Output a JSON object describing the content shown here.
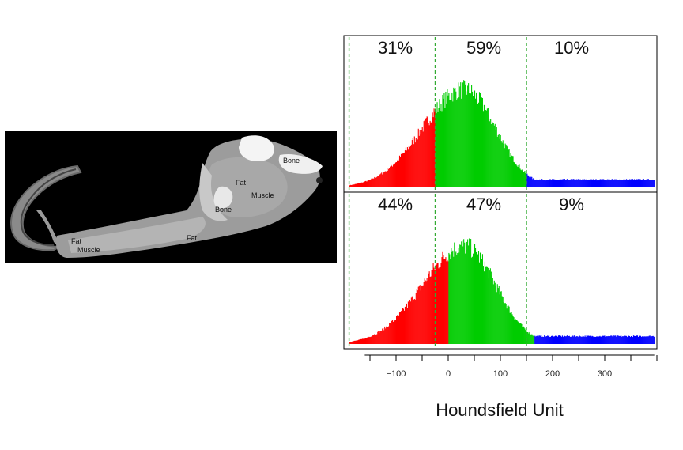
{
  "ct_image": {
    "labels": [
      {
        "text": "Bone"
      },
      {
        "text": "Fat"
      },
      {
        "text": "Muscle"
      },
      {
        "text": "Bone"
      },
      {
        "text": "Fat"
      },
      {
        "text": "Fat"
      },
      {
        "text": "Muscle"
      }
    ]
  },
  "chart_data": {
    "type": "bar",
    "xlabel": "Houndsfield Unit",
    "xlim": [
      -200,
      400
    ],
    "xticks": [
      -100,
      0,
      100,
      200,
      300
    ],
    "xtick_labels": [
      "−100",
      "0",
      "100",
      "200",
      "300"
    ],
    "colors": {
      "fat": "#ff0000",
      "muscle": "#00cc00",
      "bone": "#0000ff",
      "threshold": "#33aa33"
    },
    "panels": [
      {
        "percentages": [
          "31%",
          "59%",
          "10%"
        ],
        "fat_muscle_split": -25,
        "muscle_bone_split": 150,
        "thresholds": [
          -190,
          -25,
          150
        ]
      },
      {
        "percentages": [
          "44%",
          "47%",
          "9%"
        ],
        "fat_muscle_split": 0,
        "muscle_bone_split": 165,
        "thresholds": [
          -190,
          -25,
          150
        ]
      }
    ]
  }
}
